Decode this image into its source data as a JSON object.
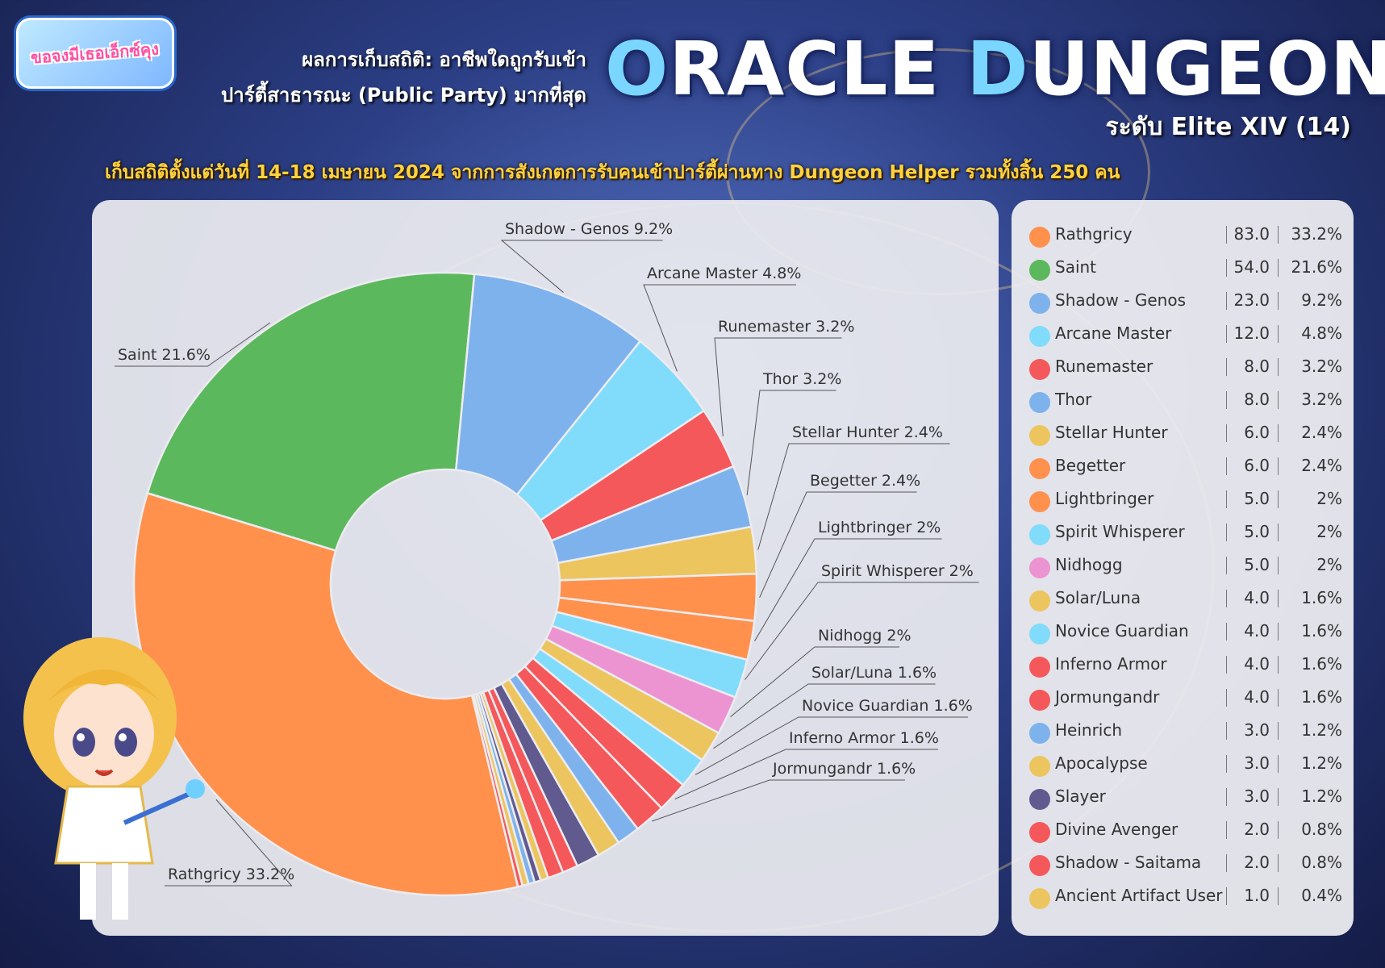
{
  "logo_text": "ขอจงมีเธอเอ็กซ์คุง",
  "header": {
    "subtitle_line1": "ผลการเก็บสถิติ: อาชีพใดถูกรับเข้า",
    "subtitle_line2": "ปาร์ตี้สาธารณะ (Public Party) มากที่สุด",
    "title_accent_1": "O",
    "title_rest_1": "RACLE ",
    "title_accent_2": "D",
    "title_rest_2": "UNGEON",
    "level": "ระดับ Elite XIV (14)",
    "note": "เก็บสถิติตั้งแต่วันที่ 14-18 เมษายน 2024 จากการสังเกตการรับคนเข้าปาร์ตี้ผ่านทาง Dungeon Helper รวมทั้งสิ้น 250 คน"
  },
  "chart_data": {
    "type": "pie",
    "donut": true,
    "total": 250,
    "slices": [
      {
        "name": "Rathgricy",
        "value": 83.0,
        "pct": "33.2%",
        "color": "#FF914D",
        "label": "Rathgricy 33.2%"
      },
      {
        "name": "Saint",
        "value": 54.0,
        "pct": "21.6%",
        "color": "#5CB85C",
        "label": "Saint 21.6%"
      },
      {
        "name": "Shadow - Genos",
        "value": 23.0,
        "pct": "9.2%",
        "color": "#7EB2EC",
        "label": "Shadow - Genos 9.2%"
      },
      {
        "name": "Arcane Master",
        "value": 12.0,
        "pct": "4.8%",
        "color": "#80DCFA",
        "label": "Arcane Master 4.8%"
      },
      {
        "name": "Runemaster",
        "value": 8.0,
        "pct": "3.2%",
        "color": "#F5585A",
        "label": "Runemaster 3.2%"
      },
      {
        "name": "Thor",
        "value": 8.0,
        "pct": "3.2%",
        "color": "#7EB2EC",
        "label": "Thor 3.2%"
      },
      {
        "name": "Stellar Hunter",
        "value": 6.0,
        "pct": "2.4%",
        "color": "#ECC55F",
        "label": "Stellar Hunter 2.4%"
      },
      {
        "name": "Begetter",
        "value": 6.0,
        "pct": "2.4%",
        "color": "#FF914D",
        "label": "Begetter 2.4%"
      },
      {
        "name": "Lightbringer",
        "value": 5.0,
        "pct": "2%",
        "color": "#FF914D",
        "label": "Lightbringer 2%"
      },
      {
        "name": "Spirit Whisperer",
        "value": 5.0,
        "pct": "2%",
        "color": "#80DCFA",
        "label": "Spirit Whisperer 2%"
      },
      {
        "name": "Nidhogg",
        "value": 5.0,
        "pct": "2%",
        "color": "#EC94D2",
        "label": "Nidhogg 2%"
      },
      {
        "name": "Solar/Luna",
        "value": 4.0,
        "pct": "1.6%",
        "color": "#ECC55F",
        "label": "Solar/Luna 1.6%"
      },
      {
        "name": "Novice Guardian",
        "value": 4.0,
        "pct": "1.6%",
        "color": "#80DCFA",
        "label": "Novice Guardian 1.6%"
      },
      {
        "name": "Inferno Armor",
        "value": 4.0,
        "pct": "1.6%",
        "color": "#F5585A",
        "label": "Inferno Armor 1.6%"
      },
      {
        "name": "Jormungandr",
        "value": 4.0,
        "pct": "1.6%",
        "color": "#F5585A",
        "label": "Jormungandr 1.6%"
      },
      {
        "name": "Heinrich",
        "value": 3.0,
        "pct": "1.2%",
        "color": "#7EB2EC",
        "label": ""
      },
      {
        "name": "Apocalypse",
        "value": 3.0,
        "pct": "1.2%",
        "color": "#ECC55F",
        "label": ""
      },
      {
        "name": "Slayer",
        "value": 3.0,
        "pct": "1.2%",
        "color": "#615A8F",
        "label": ""
      },
      {
        "name": "Divine Avenger",
        "value": 2.0,
        "pct": "0.8%",
        "color": "#F5585A",
        "label": ""
      },
      {
        "name": "Shadow - Saitama",
        "value": 2.0,
        "pct": "0.8%",
        "color": "#F5585A",
        "label": ""
      },
      {
        "name": "Ancient Artifact User",
        "value": 1.0,
        "pct": "0.4%",
        "color": "#ECC55F",
        "label": ""
      },
      {
        "name": "",
        "value": 0.8,
        "pct": "",
        "color": "#615A8F",
        "label": ""
      },
      {
        "name": "",
        "value": 0.8,
        "pct": "",
        "color": "#7EB2EC",
        "label": ""
      },
      {
        "name": "",
        "value": 0.8,
        "pct": "",
        "color": "#ECC55F",
        "label": ""
      },
      {
        "name": "",
        "value": 0.6,
        "pct": "",
        "color": "#F5585A",
        "label": ""
      }
    ]
  },
  "legend": [
    {
      "name": "Rathgricy",
      "value": "83.0",
      "pct": "33.2%",
      "color": "#FF914D"
    },
    {
      "name": "Saint",
      "value": "54.0",
      "pct": "21.6%",
      "color": "#5CB85C"
    },
    {
      "name": "Shadow - Genos",
      "value": "23.0",
      "pct": "9.2%",
      "color": "#7EB2EC"
    },
    {
      "name": "Arcane Master",
      "value": "12.0",
      "pct": "4.8%",
      "color": "#80DCFA"
    },
    {
      "name": "Runemaster",
      "value": "8.0",
      "pct": "3.2%",
      "color": "#F5585A"
    },
    {
      "name": "Thor",
      "value": "8.0",
      "pct": "3.2%",
      "color": "#7EB2EC"
    },
    {
      "name": "Stellar Hunter",
      "value": "6.0",
      "pct": "2.4%",
      "color": "#ECC55F"
    },
    {
      "name": "Begetter",
      "value": "6.0",
      "pct": "2.4%",
      "color": "#FF914D"
    },
    {
      "name": "Lightbringer",
      "value": "5.0",
      "pct": "2%",
      "color": "#FF914D"
    },
    {
      "name": "Spirit Whisperer",
      "value": "5.0",
      "pct": "2%",
      "color": "#80DCFA"
    },
    {
      "name": "Nidhogg",
      "value": "5.0",
      "pct": "2%",
      "color": "#EC94D2"
    },
    {
      "name": "Solar/Luna",
      "value": "4.0",
      "pct": "1.6%",
      "color": "#ECC55F"
    },
    {
      "name": "Novice Guardian",
      "value": "4.0",
      "pct": "1.6%",
      "color": "#80DCFA"
    },
    {
      "name": "Inferno Armor",
      "value": "4.0",
      "pct": "1.6%",
      "color": "#F5585A"
    },
    {
      "name": "Jormungandr",
      "value": "4.0",
      "pct": "1.6%",
      "color": "#F5585A"
    },
    {
      "name": "Heinrich",
      "value": "3.0",
      "pct": "1.2%",
      "color": "#7EB2EC"
    },
    {
      "name": "Apocalypse",
      "value": "3.0",
      "pct": "1.2%",
      "color": "#ECC55F"
    },
    {
      "name": "Slayer",
      "value": "3.0",
      "pct": "1.2%",
      "color": "#615A8F"
    },
    {
      "name": "Divine Avenger",
      "value": "2.0",
      "pct": "0.8%",
      "color": "#F5585A"
    },
    {
      "name": "Shadow - Saitama",
      "value": "2.0",
      "pct": "0.8%",
      "color": "#F5585A"
    },
    {
      "name": "Ancient Artifact User",
      "value": "1.0",
      "pct": "0.4%",
      "color": "#ECC55F"
    }
  ]
}
